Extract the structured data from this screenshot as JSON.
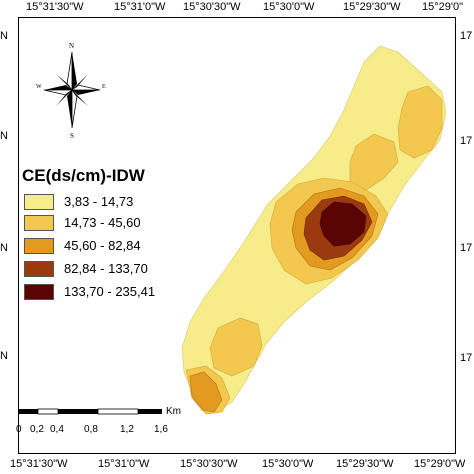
{
  "coords": {
    "top": [
      "15°31'30\"W",
      "15°31'0\"W",
      "15°30'30\"W",
      "15°30'0\"W",
      "15°29'30\"W",
      "15°29'0\""
    ],
    "bottom": [
      "15°31'30\"W",
      "15°31'0\"W",
      "15°30'30\"W",
      "15°30'0\"W",
      "15°29'30\"W",
      "15°29'0\"W"
    ],
    "left": [
      "N",
      "N",
      "N",
      "N"
    ],
    "right": [
      "17",
      "17",
      "17",
      "17"
    ]
  },
  "legend": {
    "title": "CE(ds/cm)-IDW",
    "classes": [
      {
        "label": "3,83 - 14,73",
        "color": "#f6ec8a"
      },
      {
        "label": "14,73 - 45,60",
        "color": "#f3c84e"
      },
      {
        "label": "45,60 - 82,84",
        "color": "#e39a21"
      },
      {
        "label": "82,84 - 133,70",
        "color": "#9c3a0f"
      },
      {
        "label": "133,70 - 235,41",
        "color": "#5a0404"
      }
    ]
  },
  "compass": {
    "n": "N",
    "s": "S",
    "e": "E",
    "w": "W"
  },
  "scalebar": {
    "unit": "Km",
    "ticks": [
      "0",
      "0,2",
      "0,4",
      "0,8",
      "1,2",
      "1,6"
    ]
  }
}
